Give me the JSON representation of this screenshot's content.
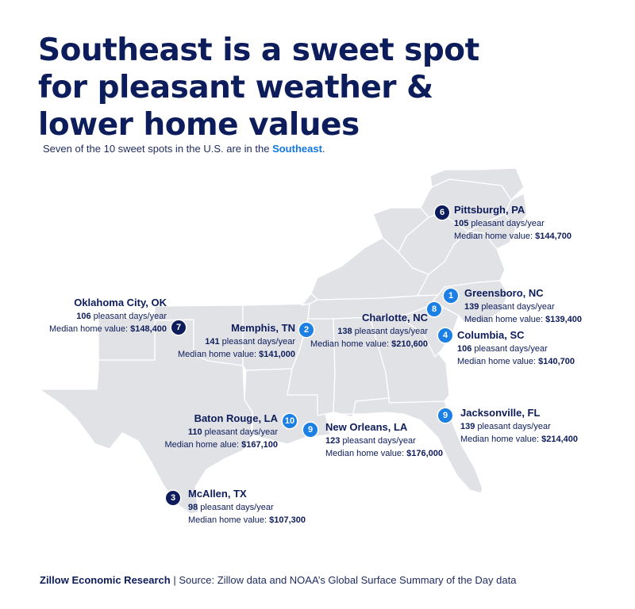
{
  "title_lines": [
    "Southeast is a sweet spot",
    "for pleasant weather &",
    "lower home values"
  ],
  "subtitle": {
    "text": "Seven of the 10 sweet spots in the U.S. are in the ",
    "highlight": "Southeast",
    "end": "."
  },
  "colors": {
    "navy": "#0d1c5a",
    "accent_blue": "#1b7fe3",
    "map_fill": "#e1e2e6",
    "border": "#ffffff"
  },
  "labels": {
    "pleasant_suffix": " pleasant days/year",
    "median_prefix": "Median home value: ",
    "median_prefix_alt": "Median home alue: "
  },
  "cities": [
    {
      "rank": "1",
      "name": "Greensboro, NC",
      "days": "139",
      "value": "$139,400",
      "style": "blue"
    },
    {
      "rank": "2",
      "name": "Memphis, TN",
      "days": "141",
      "value": "$141,000",
      "style": "blue"
    },
    {
      "rank": "3",
      "name": "McAllen, TX",
      "days": "98",
      "value": "$107,300",
      "style": "dark"
    },
    {
      "rank": "4",
      "name": "Columbia, SC",
      "days": "106",
      "value": "$140,700",
      "style": "blue"
    },
    {
      "rank": "6",
      "name": "Pittsburgh, PA",
      "days": "105",
      "value": "$144,700",
      "style": "dark"
    },
    {
      "rank": "7",
      "name": "Oklahoma City, OK",
      "days": "106",
      "value": "$148,400",
      "style": "dark"
    },
    {
      "rank": "8",
      "name": "Charlotte, NC",
      "days": "138",
      "value": "$210,600",
      "style": "blue"
    },
    {
      "rank": "9",
      "name": "Jacksonville, FL",
      "days": "139",
      "value": "$214,400",
      "style": "blue"
    },
    {
      "rank": "9",
      "name": "New Orleans, LA",
      "days": "123",
      "value": "$176,000",
      "style": "blue"
    },
    {
      "rank": "10",
      "name": "Baton Rouge, LA",
      "days": "110",
      "value": "$167,100",
      "style": "blue"
    }
  ],
  "footer": {
    "org": "Zillow Economic Research",
    "separator": " | ",
    "source": "Source: Zillow data and NOAA’s Global Surface Summary of the Day data"
  }
}
